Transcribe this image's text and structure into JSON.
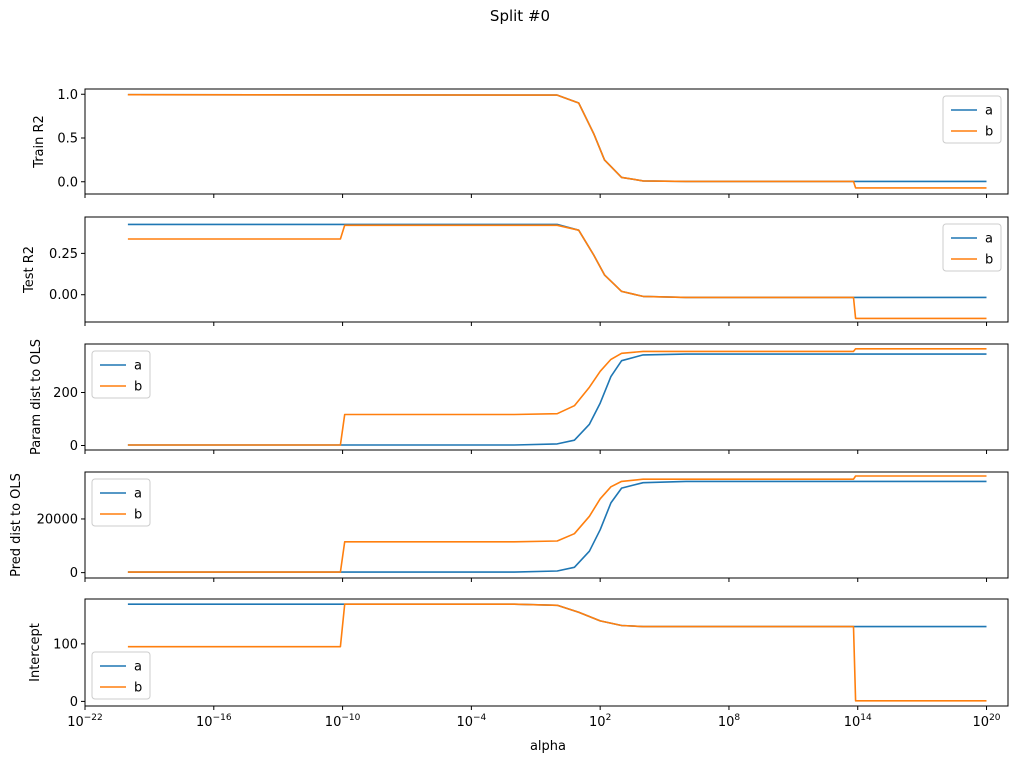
{
  "figure": {
    "suptitle": "Split #0",
    "xlabel": "alpha"
  },
  "colors": {
    "a": "#1f77b4",
    "b": "#ff7f0e"
  },
  "chart_data": [
    {
      "type": "line",
      "ylabel": "Train R2",
      "xscale": "log",
      "xlim_exp": [
        -22,
        21
      ],
      "xticks_exp": [
        -22,
        -16,
        -10,
        -4,
        2,
        8,
        14,
        20
      ],
      "ylim": [
        -0.14,
        1.06
      ],
      "yticks": [
        {
          "v": 1.0,
          "label": "1.0"
        },
        {
          "v": 0.5,
          "label": "0.5"
        },
        {
          "v": 0.0,
          "label": "0.0"
        }
      ],
      "legend_loc": "upper-right",
      "series": [
        {
          "name": "a",
          "points": [
            [
              -20,
              0.995
            ],
            [
              0,
              0.99
            ],
            [
              1,
              0.9
            ],
            [
              1.7,
              0.55
            ],
            [
              2.2,
              0.25
            ],
            [
              3,
              0.05
            ],
            [
              4,
              0.01
            ],
            [
              6,
              0.004
            ],
            [
              20,
              0.004
            ]
          ]
        },
        {
          "name": "b",
          "points": [
            [
              -20,
              0.995
            ],
            [
              0,
              0.99
            ],
            [
              1,
              0.9
            ],
            [
              1.7,
              0.55
            ],
            [
              2.2,
              0.25
            ],
            [
              3,
              0.05
            ],
            [
              4,
              0.01
            ],
            [
              6,
              0.004
            ],
            [
              13.8,
              0.004
            ],
            [
              13.9,
              -0.07
            ],
            [
              20,
              -0.07
            ]
          ]
        }
      ]
    },
    {
      "type": "line",
      "ylabel": "Test R2",
      "xscale": "log",
      "xlim_exp": [
        -22,
        21
      ],
      "xticks_exp": [
        -22,
        -16,
        -10,
        -4,
        2,
        8,
        14,
        20
      ],
      "ylim": [
        -0.165,
        0.47
      ],
      "yticks": [
        {
          "v": 0.25,
          "label": "0.25"
        },
        {
          "v": 0.0,
          "label": "0.00"
        }
      ],
      "legend_loc": "upper-right",
      "series": [
        {
          "name": "a",
          "points": [
            [
              -20,
              0.425
            ],
            [
              0,
              0.425
            ],
            [
              1,
              0.39
            ],
            [
              1.7,
              0.24
            ],
            [
              2.2,
              0.12
            ],
            [
              3,
              0.02
            ],
            [
              4,
              -0.01
            ],
            [
              6,
              -0.016
            ],
            [
              20,
              -0.016
            ]
          ]
        },
        {
          "name": "b",
          "points": [
            [
              -20,
              0.337
            ],
            [
              -10.1,
              0.337
            ],
            [
              -9.9,
              0.42
            ],
            [
              0,
              0.42
            ],
            [
              1,
              0.39
            ],
            [
              1.7,
              0.24
            ],
            [
              2.2,
              0.12
            ],
            [
              3,
              0.02
            ],
            [
              4,
              -0.01
            ],
            [
              6,
              -0.016
            ],
            [
              13.8,
              -0.016
            ],
            [
              13.9,
              -0.143
            ],
            [
              20,
              -0.143
            ]
          ]
        }
      ]
    },
    {
      "type": "line",
      "ylabel": "Param dist to OLS",
      "xscale": "log",
      "xlim_exp": [
        -22,
        21
      ],
      "xticks_exp": [
        -22,
        -16,
        -10,
        -4,
        2,
        8,
        14,
        20
      ],
      "ylim": [
        -17,
        383
      ],
      "yticks": [
        {
          "v": 200,
          "label": "200"
        },
        {
          "v": 0,
          "label": "0"
        }
      ],
      "legend_loc": "upper-left",
      "series": [
        {
          "name": "a",
          "points": [
            [
              -20,
              2
            ],
            [
              -2,
              2
            ],
            [
              0,
              6
            ],
            [
              0.8,
              20
            ],
            [
              1.5,
              80
            ],
            [
              2,
              160
            ],
            [
              2.5,
              260
            ],
            [
              3,
              320
            ],
            [
              4,
              342
            ],
            [
              6,
              345
            ],
            [
              20,
              345
            ]
          ]
        },
        {
          "name": "b",
          "points": [
            [
              -20,
              2
            ],
            [
              -10.1,
              2
            ],
            [
              -9.9,
              117
            ],
            [
              -2,
              117
            ],
            [
              0,
              120
            ],
            [
              0.8,
              150
            ],
            [
              1.5,
              220
            ],
            [
              2,
              280
            ],
            [
              2.5,
              325
            ],
            [
              3,
              348
            ],
            [
              4,
              355
            ],
            [
              13.8,
              355
            ],
            [
              13.9,
              365
            ],
            [
              20,
              365
            ]
          ]
        }
      ]
    },
    {
      "type": "line",
      "ylabel": "Pred dist to OLS",
      "xscale": "log",
      "xlim_exp": [
        -22,
        21
      ],
      "xticks_exp": [
        -22,
        -16,
        -10,
        -4,
        2,
        8,
        14,
        20
      ],
      "ylim": [
        -2000,
        37500
      ],
      "yticks": [
        {
          "v": 20000,
          "label": "20000"
        },
        {
          "v": 0,
          "label": "0"
        }
      ],
      "legend_loc": "upper-left",
      "series": [
        {
          "name": "a",
          "points": [
            [
              -20,
              200
            ],
            [
              -2,
              200
            ],
            [
              0,
              600
            ],
            [
              0.8,
              2000
            ],
            [
              1.5,
              8000
            ],
            [
              2,
              16000
            ],
            [
              2.5,
              26000
            ],
            [
              3,
              31500
            ],
            [
              4,
              33500
            ],
            [
              6,
              34000
            ],
            [
              20,
              34000
            ]
          ]
        },
        {
          "name": "b",
          "points": [
            [
              -20,
              200
            ],
            [
              -10.1,
              200
            ],
            [
              -9.9,
              11500
            ],
            [
              -2,
              11500
            ],
            [
              0,
              11800
            ],
            [
              0.8,
              14500
            ],
            [
              1.5,
              21000
            ],
            [
              2,
              27500
            ],
            [
              2.5,
              32000
            ],
            [
              3,
              34000
            ],
            [
              4,
              34800
            ],
            [
              13.8,
              34800
            ],
            [
              13.9,
              36000
            ],
            [
              20,
              36000
            ]
          ]
        }
      ]
    },
    {
      "type": "line",
      "ylabel": "Intercept",
      "xscale": "log",
      "xlim_exp": [
        -22,
        21
      ],
      "xticks_exp": [
        -22,
        -16,
        -10,
        -4,
        2,
        8,
        14,
        20
      ],
      "ylim": [
        -8,
        178
      ],
      "yticks": [
        {
          "v": 100,
          "label": "100"
        },
        {
          "v": 0,
          "label": "0"
        }
      ],
      "legend_loc": "lower-left",
      "series": [
        {
          "name": "a",
          "points": [
            [
              -20,
              169
            ],
            [
              -2,
              169
            ],
            [
              0,
              167
            ],
            [
              1,
              155
            ],
            [
              2,
              140
            ],
            [
              3,
              132
            ],
            [
              4,
              130
            ],
            [
              20,
              130
            ]
          ]
        },
        {
          "name": "b",
          "points": [
            [
              -20,
              95
            ],
            [
              -10.1,
              95
            ],
            [
              -9.9,
              169
            ],
            [
              -2,
              169
            ],
            [
              0,
              167
            ],
            [
              1,
              155
            ],
            [
              2,
              140
            ],
            [
              3,
              132
            ],
            [
              4,
              130
            ],
            [
              13.8,
              130
            ],
            [
              13.9,
              1
            ],
            [
              20,
              1
            ]
          ]
        }
      ]
    }
  ]
}
